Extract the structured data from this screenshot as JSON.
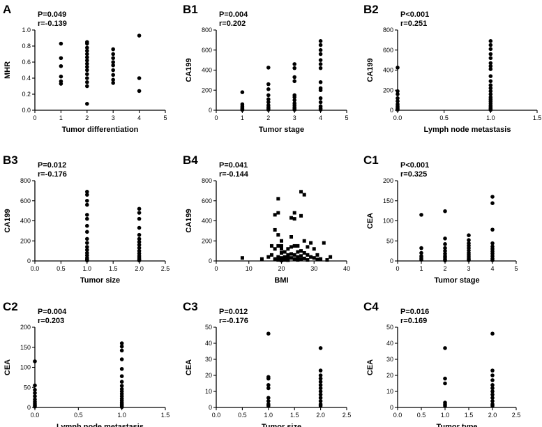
{
  "chart_data": [
    {
      "panel": "A",
      "type": "scatter",
      "p": "P=0.049",
      "r": "r=-0.139",
      "xlabel": "Tumor differentiation",
      "ylabel": "MHR",
      "xlim": [
        0,
        5
      ],
      "ylim": [
        0,
        1.0
      ],
      "xticks": [
        "0",
        "1",
        "2",
        "3",
        "4",
        "5"
      ],
      "yticks": [
        "0.0",
        "0.2",
        "0.4",
        "0.6",
        "0.8",
        "1.0"
      ],
      "marker": "circle",
      "points": [
        [
          1,
          0.83
        ],
        [
          1,
          0.65
        ],
        [
          1,
          0.55
        ],
        [
          1,
          0.42
        ],
        [
          1,
          0.36
        ],
        [
          1,
          0.33
        ],
        [
          2,
          0.85
        ],
        [
          2,
          0.83
        ],
        [
          2,
          0.78
        ],
        [
          2,
          0.74
        ],
        [
          2,
          0.7
        ],
        [
          2,
          0.66
        ],
        [
          2,
          0.62
        ],
        [
          2,
          0.58
        ],
        [
          2,
          0.54
        ],
        [
          2,
          0.5
        ],
        [
          2,
          0.45
        ],
        [
          2,
          0.4
        ],
        [
          2,
          0.35
        ],
        [
          2,
          0.3
        ],
        [
          2,
          0.08
        ],
        [
          3,
          0.76
        ],
        [
          3,
          0.7
        ],
        [
          3,
          0.65
        ],
        [
          3,
          0.6
        ],
        [
          3,
          0.56
        ],
        [
          3,
          0.5
        ],
        [
          3,
          0.44
        ],
        [
          3,
          0.38
        ],
        [
          3,
          0.34
        ],
        [
          4,
          0.93
        ],
        [
          4,
          0.4
        ],
        [
          4,
          0.24
        ]
      ]
    },
    {
      "panel": "B1",
      "type": "scatter",
      "p": "P=0.004",
      "r": "r=0.202",
      "xlabel": "Tumor stage",
      "ylabel": "CA199",
      "xlim": [
        0,
        5
      ],
      "ylim": [
        0,
        800
      ],
      "xticks": [
        "0",
        "1",
        "2",
        "3",
        "4",
        "5"
      ],
      "yticks": [
        "0",
        "200",
        "400",
        "600",
        "800"
      ],
      "marker": "circle",
      "points": [
        [
          1,
          180
        ],
        [
          1,
          60
        ],
        [
          1,
          40
        ],
        [
          1,
          25
        ],
        [
          1,
          15
        ],
        [
          1,
          8
        ],
        [
          1,
          3
        ],
        [
          2,
          425
        ],
        [
          2,
          260
        ],
        [
          2,
          210
        ],
        [
          2,
          150
        ],
        [
          2,
          110
        ],
        [
          2,
          80
        ],
        [
          2,
          50
        ],
        [
          2,
          30
        ],
        [
          2,
          15
        ],
        [
          2,
          5
        ],
        [
          3,
          460
        ],
        [
          3,
          420
        ],
        [
          3,
          330
        ],
        [
          3,
          290
        ],
        [
          3,
          150
        ],
        [
          3,
          130
        ],
        [
          3,
          100
        ],
        [
          3,
          70
        ],
        [
          3,
          50
        ],
        [
          3,
          30
        ],
        [
          3,
          15
        ],
        [
          3,
          5
        ],
        [
          4,
          690
        ],
        [
          4,
          650
        ],
        [
          4,
          600
        ],
        [
          4,
          560
        ],
        [
          4,
          500
        ],
        [
          4,
          460
        ],
        [
          4,
          420
        ],
        [
          4,
          280
        ],
        [
          4,
          220
        ],
        [
          4,
          200
        ],
        [
          4,
          120
        ],
        [
          4,
          80
        ],
        [
          4,
          40
        ],
        [
          4,
          20
        ],
        [
          4,
          5
        ]
      ]
    },
    {
      "panel": "B2",
      "type": "scatter",
      "p": "P<0.001",
      "r": "r=0.251",
      "xlabel": "Lymph node metastasis",
      "ylabel": "CA199",
      "xlim": [
        0,
        1.5
      ],
      "ylim": [
        0,
        800
      ],
      "xticks": [
        "0.0",
        "0.5",
        "1.0",
        "1.5"
      ],
      "yticks": [
        "0",
        "200",
        "400",
        "600",
        "800"
      ],
      "marker": "circle",
      "points": [
        [
          0,
          425
        ],
        [
          0,
          190
        ],
        [
          0,
          160
        ],
        [
          0,
          120
        ],
        [
          0,
          90
        ],
        [
          0,
          60
        ],
        [
          0,
          40
        ],
        [
          0,
          25
        ],
        [
          0,
          15
        ],
        [
          0,
          5
        ],
        [
          1,
          690
        ],
        [
          1,
          650
        ],
        [
          1,
          610
        ],
        [
          1,
          560
        ],
        [
          1,
          520
        ],
        [
          1,
          470
        ],
        [
          1,
          440
        ],
        [
          1,
          410
        ],
        [
          1,
          340
        ],
        [
          1,
          290
        ],
        [
          1,
          250
        ],
        [
          1,
          220
        ],
        [
          1,
          190
        ],
        [
          1,
          160
        ],
        [
          1,
          130
        ],
        [
          1,
          110
        ],
        [
          1,
          90
        ],
        [
          1,
          70
        ],
        [
          1,
          50
        ],
        [
          1,
          35
        ],
        [
          1,
          20
        ],
        [
          1,
          10
        ],
        [
          1,
          3
        ]
      ]
    },
    {
      "panel": "B3",
      "type": "scatter",
      "p": "P=0.012",
      "r": "r=-0.176",
      "xlabel": "Tumor size",
      "ylabel": "CA199",
      "xlim": [
        0,
        2.5
      ],
      "ylim": [
        0,
        800
      ],
      "xticks": [
        "0.0",
        "0.5",
        "1.0",
        "1.5",
        "2.0",
        "2.5"
      ],
      "yticks": [
        "0",
        "200",
        "400",
        "600",
        "800"
      ],
      "marker": "circle",
      "points": [
        [
          1,
          690
        ],
        [
          1,
          660
        ],
        [
          1,
          600
        ],
        [
          1,
          560
        ],
        [
          1,
          460
        ],
        [
          1,
          420
        ],
        [
          1,
          350
        ],
        [
          1,
          290
        ],
        [
          1,
          220
        ],
        [
          1,
          180
        ],
        [
          1,
          140
        ],
        [
          1,
          110
        ],
        [
          1,
          80
        ],
        [
          1,
          55
        ],
        [
          1,
          30
        ],
        [
          1,
          15
        ],
        [
          1,
          5
        ],
        [
          2,
          520
        ],
        [
          2,
          480
        ],
        [
          2,
          420
        ],
        [
          2,
          330
        ],
        [
          2,
          260
        ],
        [
          2,
          220
        ],
        [
          2,
          190
        ],
        [
          2,
          160
        ],
        [
          2,
          130
        ],
        [
          2,
          100
        ],
        [
          2,
          75
        ],
        [
          2,
          50
        ],
        [
          2,
          30
        ],
        [
          2,
          15
        ],
        [
          2,
          5
        ]
      ]
    },
    {
      "panel": "B4",
      "type": "scatter",
      "p": "P=0.041",
      "r": "r=-0.144",
      "xlabel": "BMI",
      "ylabel": "CA199",
      "xlim": [
        0,
        40
      ],
      "ylim": [
        0,
        800
      ],
      "xticks": [
        "0",
        "10",
        "20",
        "30",
        "40"
      ],
      "yticks": [
        "0",
        "200",
        "400",
        "600",
        "800"
      ],
      "marker": "square",
      "points": [
        [
          8,
          30
        ],
        [
          14,
          20
        ],
        [
          16,
          40
        ],
        [
          17,
          150
        ],
        [
          17,
          60
        ],
        [
          18,
          460
        ],
        [
          18,
          310
        ],
        [
          18,
          120
        ],
        [
          18,
          20
        ],
        [
          19,
          620
        ],
        [
          19,
          480
        ],
        [
          19,
          260
        ],
        [
          19,
          150
        ],
        [
          19,
          40
        ],
        [
          19,
          10
        ],
        [
          20,
          200
        ],
        [
          20,
          150
        ],
        [
          20,
          120
        ],
        [
          20,
          80
        ],
        [
          20,
          30
        ],
        [
          20,
          5
        ],
        [
          21,
          90
        ],
        [
          21,
          40
        ],
        [
          21,
          10
        ],
        [
          22,
          60
        ],
        [
          22,
          120
        ],
        [
          22,
          30
        ],
        [
          22,
          8
        ],
        [
          23,
          430
        ],
        [
          23,
          240
        ],
        [
          23,
          140
        ],
        [
          23,
          70
        ],
        [
          23,
          30
        ],
        [
          24,
          480
        ],
        [
          24,
          420
        ],
        [
          24,
          150
        ],
        [
          24,
          60
        ],
        [
          24,
          20
        ],
        [
          25,
          150
        ],
        [
          25,
          90
        ],
        [
          25,
          40
        ],
        [
          25,
          10
        ],
        [
          26,
          690
        ],
        [
          26,
          450
        ],
        [
          26,
          100
        ],
        [
          26,
          50
        ],
        [
          26,
          15
        ],
        [
          27,
          660
        ],
        [
          27,
          200
        ],
        [
          27,
          80
        ],
        [
          27,
          25
        ],
        [
          28,
          140
        ],
        [
          28,
          60
        ],
        [
          28,
          10
        ],
        [
          29,
          180
        ],
        [
          29,
          40
        ],
        [
          30,
          120
        ],
        [
          30,
          30
        ],
        [
          31,
          60
        ],
        [
          31,
          15
        ],
        [
          32,
          20
        ],
        [
          33,
          180
        ],
        [
          34,
          10
        ],
        [
          35,
          40
        ]
      ]
    },
    {
      "panel": "C1",
      "type": "scatter",
      "p": "P<0.001",
      "r": "r=0.325",
      "xlabel": "Tumor stage",
      "ylabel": "CEA",
      "xlim": [
        0,
        5
      ],
      "ylim": [
        0,
        200
      ],
      "xticks": [
        "0",
        "1",
        "2",
        "3",
        "4",
        "5"
      ],
      "yticks": [
        "0",
        "50",
        "100",
        "150",
        "200"
      ],
      "marker": "circle",
      "points": [
        [
          1,
          115
        ],
        [
          1,
          32
        ],
        [
          1,
          20
        ],
        [
          1,
          12
        ],
        [
          1,
          7
        ],
        [
          1,
          3
        ],
        [
          2,
          124
        ],
        [
          2,
          56
        ],
        [
          2,
          42
        ],
        [
          2,
          32
        ],
        [
          2,
          25
        ],
        [
          2,
          18
        ],
        [
          2,
          12
        ],
        [
          2,
          8
        ],
        [
          2,
          4
        ],
        [
          2,
          1
        ],
        [
          3,
          64
        ],
        [
          3,
          52
        ],
        [
          3,
          44
        ],
        [
          3,
          38
        ],
        [
          3,
          32
        ],
        [
          3,
          26
        ],
        [
          3,
          20
        ],
        [
          3,
          15
        ],
        [
          3,
          10
        ],
        [
          3,
          5
        ],
        [
          3,
          2
        ],
        [
          4,
          160
        ],
        [
          4,
          144
        ],
        [
          4,
          78
        ],
        [
          4,
          44
        ],
        [
          4,
          36
        ],
        [
          4,
          30
        ],
        [
          4,
          24
        ],
        [
          4,
          18
        ],
        [
          4,
          12
        ],
        [
          4,
          6
        ],
        [
          4,
          2
        ]
      ]
    },
    {
      "panel": "C2",
      "type": "scatter",
      "p": "P=0.004",
      "r": "r=0.203",
      "xlabel": "Lymph node metastasis",
      "ylabel": "CEA",
      "xlim": [
        0,
        1.5
      ],
      "ylim": [
        0,
        200
      ],
      "xticks": [
        "0.0",
        "0.5",
        "1.0",
        "1.5"
      ],
      "yticks": [
        "0",
        "50",
        "100",
        "150",
        "200"
      ],
      "marker": "circle",
      "points": [
        [
          0,
          115
        ],
        [
          0,
          55
        ],
        [
          0,
          44
        ],
        [
          0,
          36
        ],
        [
          0,
          28
        ],
        [
          0,
          20
        ],
        [
          0,
          14
        ],
        [
          0,
          9
        ],
        [
          0,
          5
        ],
        [
          0,
          2
        ],
        [
          1,
          160
        ],
        [
          1,
          152
        ],
        [
          1,
          142
        ],
        [
          1,
          120
        ],
        [
          1,
          96
        ],
        [
          1,
          78
        ],
        [
          1,
          64
        ],
        [
          1,
          54
        ],
        [
          1,
          46
        ],
        [
          1,
          40
        ],
        [
          1,
          34
        ],
        [
          1,
          28
        ],
        [
          1,
          22
        ],
        [
          1,
          17
        ],
        [
          1,
          12
        ],
        [
          1,
          8
        ],
        [
          1,
          4
        ],
        [
          1,
          1
        ]
      ]
    },
    {
      "panel": "C3",
      "type": "scatter",
      "p": "P=0.012",
      "r": "r=-0.176",
      "xlabel": "Tumor size",
      "ylabel": "CEA",
      "xlim": [
        0,
        2.5
      ],
      "ylim": [
        0,
        50
      ],
      "xticks": [
        "0.0",
        "0.5",
        "1.0",
        "1.5",
        "2.0",
        "2.5"
      ],
      "yticks": [
        "0",
        "10",
        "20",
        "30",
        "40",
        "50"
      ],
      "marker": "circle",
      "points": [
        [
          1,
          46
        ],
        [
          1,
          19
        ],
        [
          1,
          18
        ],
        [
          1,
          14
        ],
        [
          1,
          12
        ],
        [
          1,
          6
        ],
        [
          1,
          4
        ],
        [
          1,
          2
        ],
        [
          1,
          1
        ],
        [
          2,
          37
        ],
        [
          2,
          23
        ],
        [
          2,
          20
        ],
        [
          2,
          18
        ],
        [
          2,
          16
        ],
        [
          2,
          14
        ],
        [
          2,
          12
        ],
        [
          2,
          10
        ],
        [
          2,
          8
        ],
        [
          2,
          6
        ],
        [
          2,
          4
        ],
        [
          2,
          2
        ],
        [
          2,
          1
        ]
      ]
    },
    {
      "panel": "C4",
      "type": "scatter",
      "p": "P=0.016",
      "r": "r=0.169",
      "xlabel": "Tumor type",
      "ylabel": "CEA",
      "xlim": [
        0,
        2.5
      ],
      "ylim": [
        0,
        50
      ],
      "xticks": [
        "0.0",
        "0.5",
        "1.0",
        "1.5",
        "2.0",
        "2.5"
      ],
      "yticks": [
        "0",
        "10",
        "20",
        "30",
        "40",
        "50"
      ],
      "marker": "circle",
      "points": [
        [
          1,
          37
        ],
        [
          1,
          18
        ],
        [
          1,
          15
        ],
        [
          1,
          3
        ],
        [
          1,
          2
        ],
        [
          1,
          1
        ],
        [
          2,
          46
        ],
        [
          2,
          23
        ],
        [
          2,
          20
        ],
        [
          2,
          17
        ],
        [
          2,
          14
        ],
        [
          2,
          12
        ],
        [
          2,
          10
        ],
        [
          2,
          8
        ],
        [
          2,
          6
        ],
        [
          2,
          4
        ],
        [
          2,
          2
        ],
        [
          2,
          1
        ]
      ]
    }
  ]
}
